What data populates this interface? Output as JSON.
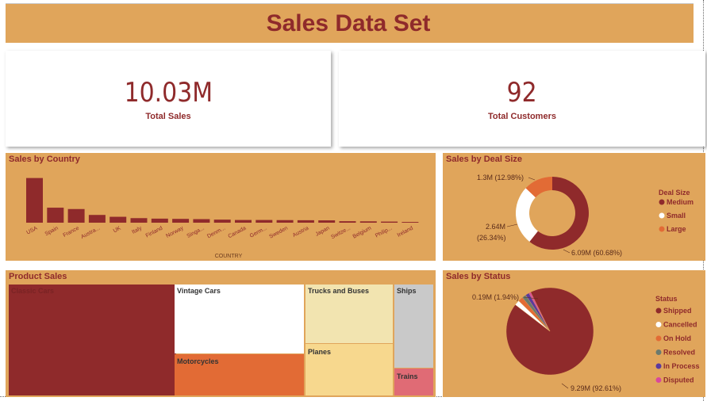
{
  "header": {
    "title": "Sales Data Set"
  },
  "kpis": {
    "total_sales": {
      "value": "10.03M",
      "label": "Total Sales"
    },
    "total_customers": {
      "value": "92",
      "label": "Total Customers"
    }
  },
  "colors": {
    "background_panel": "#e0a55b",
    "primary": "#8f2a2b",
    "orange": "#e26b35",
    "white": "#ffffff",
    "light_yellow": "#f2e4b0",
    "pale_yellow": "#f7d88e",
    "gray": "#c9c9c9",
    "pink": "#e06b75",
    "green_gray": "#6b7a6e",
    "purple": "#5b3a9e",
    "magenta": "#d9489c"
  },
  "chart_data": [
    {
      "type": "bar",
      "title": "Sales by Country",
      "xlabel": "COUNTRY",
      "categories": [
        "USA",
        "Spain",
        "France",
        "Austra...",
        "UK",
        "Italy",
        "Finland",
        "Norway",
        "Singa...",
        "Denm...",
        "Canada",
        "Germ...",
        "Sweden",
        "Austria",
        "Japan",
        "Switze...",
        "Belgium",
        "Philip...",
        "Ireland"
      ],
      "values": [
        3.63,
        1.22,
        1.11,
        0.63,
        0.48,
        0.37,
        0.33,
        0.31,
        0.29,
        0.25,
        0.22,
        0.22,
        0.21,
        0.2,
        0.19,
        0.12,
        0.11,
        0.09,
        0.06
      ],
      "ylim": [
        0,
        3.8
      ],
      "grid": false
    },
    {
      "type": "pie",
      "subtype": "donut",
      "title": "Sales by Deal Size",
      "legend_title": "Deal Size",
      "legend_position": "right",
      "series": [
        {
          "name": "Medium",
          "value": 6.09,
          "percent": 60.68,
          "label": "6.09M (60.68%)",
          "color": "#8f2a2b"
        },
        {
          "name": "Small",
          "value": 2.64,
          "percent": 26.34,
          "label_line1": "2.64M",
          "label_line2": "(26.34%)",
          "color": "#ffffff"
        },
        {
          "name": "Large",
          "value": 1.3,
          "percent": 12.98,
          "label": "1.3M (12.98%)",
          "color": "#e26b35"
        }
      ]
    },
    {
      "type": "treemap",
      "title": "Product Sales",
      "items": [
        {
          "name": "Classic Cars",
          "color": "#8f2a2b",
          "text_color": "#7a2324"
        },
        {
          "name": "Vintage Cars",
          "color": "#ffffff",
          "text_color": "#333333"
        },
        {
          "name": "Motorcycles",
          "color": "#e26b35",
          "text_color": "#333333"
        },
        {
          "name": "Trucks and Buses",
          "color": "#f2e4b0",
          "text_color": "#333333"
        },
        {
          "name": "Planes",
          "color": "#f7d88e",
          "text_color": "#333333"
        },
        {
          "name": "Ships",
          "color": "#c9c9c9",
          "text_color": "#333333"
        },
        {
          "name": "Trains",
          "color": "#e06b75",
          "text_color": "#333333"
        }
      ]
    },
    {
      "type": "pie",
      "title": "Sales by Status",
      "legend_title": "Status",
      "legend_position": "right",
      "series": [
        {
          "name": "Shipped",
          "value": 9.29,
          "percent": 92.61,
          "label": "9.29M (92.61%)",
          "color": "#8f2a2b"
        },
        {
          "name": "Cancelled",
          "value": 0.19,
          "percent": 1.94,
          "label": "0.19M (1.94%)",
          "color": "#ffffff"
        },
        {
          "name": "On Hold",
          "value": 0.18,
          "percent": 1.78,
          "color": "#e26b35"
        },
        {
          "name": "Resolved",
          "value": 0.15,
          "percent": 1.5,
          "color": "#6b7a6e"
        },
        {
          "name": "In Process",
          "value": 0.14,
          "percent": 1.44,
          "color": "#5b3a9e"
        },
        {
          "name": "Disputed",
          "value": 0.07,
          "percent": 0.73,
          "color": "#d9489c"
        }
      ]
    }
  ]
}
